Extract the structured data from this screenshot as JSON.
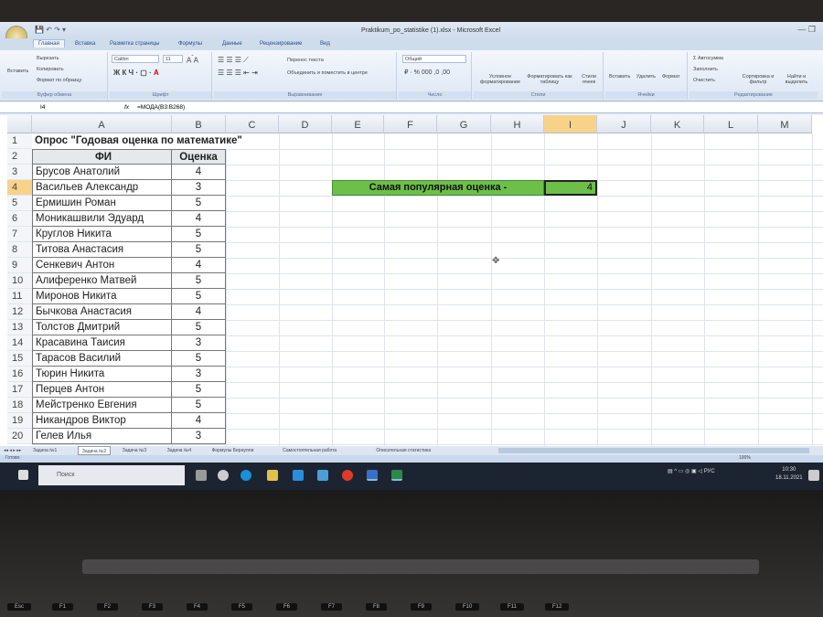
{
  "window": {
    "title": "Praktikum_po_statistike (1).xlsx - Microsoft Excel"
  },
  "ribbon_tabs": [
    "Главная",
    "Вставка",
    "Разметка страницы",
    "Формулы",
    "Данные",
    "Рецензирование",
    "Вид"
  ],
  "ribbon": {
    "clipboard": {
      "paste": "Вставить",
      "cut": "Вырезать",
      "copy": "Копировать",
      "format_painter": "Формат по образцу",
      "label": "Буфер обмена"
    },
    "font": {
      "name": "Calibri",
      "size": "11",
      "label": "Шрифт"
    },
    "alignment": {
      "wrap": "Перенос текста",
      "merge": "Объединить и поместить в центре",
      "label": "Выравнивание"
    },
    "number": {
      "format": "Общий",
      "label": "Число"
    },
    "styles": {
      "conditional": "Условное форматирование",
      "as_table": "Форматировать как таблицу",
      "cell_styles": "Стили ячеек",
      "label": "Стили"
    },
    "cells": {
      "insert": "Вставить",
      "delete": "Удалить",
      "format": "Формат",
      "label": "Ячейки"
    },
    "editing": {
      "autosum": "Автосумма",
      "fill": "Заполнить",
      "clear": "Очистить",
      "sort": "Сортировка и фильтр",
      "find": "Найти и выделить",
      "label": "Редактирование"
    }
  },
  "formula_bar": {
    "name_box": "I4",
    "fx": "fx",
    "formula": "=МОДА(B3:B268)"
  },
  "columns": [
    "A",
    "B",
    "C",
    "D",
    "E",
    "F",
    "G",
    "H",
    "I",
    "J",
    "K",
    "L",
    "M"
  ],
  "selected_column": "I",
  "selected_row": 4,
  "sheet": {
    "title": "Опрос \"Годовая оценка по математике\"",
    "headers": [
      "ФИ",
      "Оценка"
    ],
    "rows": [
      [
        "Брусов Анатолий",
        "4"
      ],
      [
        "Васильев Александр",
        "3"
      ],
      [
        "Ермишин Роман",
        "5"
      ],
      [
        "Моникашвили Эдуард",
        "4"
      ],
      [
        "Круглов Никита",
        "5"
      ],
      [
        "Титова Анастасия",
        "5"
      ],
      [
        "Сенкевич Антон",
        "4"
      ],
      [
        "Алиференко Матвей",
        "5"
      ],
      [
        "Миронов Никита",
        "5"
      ],
      [
        "Бычкова Анастасия",
        "4"
      ],
      [
        "Толстов Дмитрий",
        "5"
      ],
      [
        "Красавина Таисия",
        "3"
      ],
      [
        "Тарасов Василий",
        "5"
      ],
      [
        "Тюрин Никита",
        "3"
      ],
      [
        "Перцев Антон",
        "5"
      ],
      [
        "Мейстренко Евгения",
        "5"
      ],
      [
        "Никандров Виктор",
        "4"
      ],
      [
        "Гелев Илья",
        "3"
      ]
    ],
    "result_label": "Самая популярная оценка -",
    "result_value": "4",
    "highlight_color": "#6cbf48"
  },
  "sheet_tabs": [
    "Задача №1",
    "Задача №2",
    "Задача №3",
    "Задача №4",
    "Формулы Бернулли",
    "Самостоятельная работа",
    "Описательная статистика"
  ],
  "active_sheet_tab": "Задача №2",
  "status": {
    "ready": "Готово",
    "zoom": "100%"
  },
  "taskbar": {
    "search_placeholder": "Поиск",
    "lang": "РУС",
    "time": "10:30",
    "date": "18.11.2021"
  },
  "keyboard": [
    "Esc",
    "F1",
    "F2",
    "F3",
    "F4",
    "F5",
    "F6",
    "F7",
    "F8",
    "F9",
    "F10",
    "F11",
    "F12"
  ]
}
